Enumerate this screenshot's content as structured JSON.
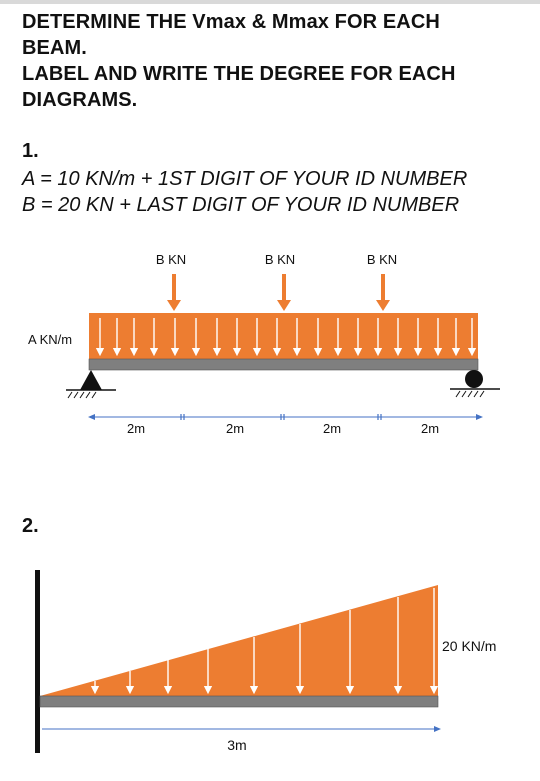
{
  "instructions": {
    "line1": "DETERMINE THE Vmax & Mmax FOR EACH",
    "line2": "BEAM.",
    "line3": "LABEL AND WRITE THE DEGREE FOR EACH",
    "line4": "DIAGRAMS."
  },
  "problem1": {
    "number": "1.",
    "given_a": "A = 10 KN/m + 1ST DIGIT OF YOUR ID NUMBER",
    "given_b": "B = 20 KN + LAST DIGIT OF YOUR ID NUMBER",
    "point_loads": [
      "B KN",
      "B KN",
      "B KN"
    ],
    "distributed_label": "A KN/m",
    "spans": [
      "2m",
      "2m",
      "2m",
      "2m"
    ]
  },
  "problem2": {
    "number": "2.",
    "load_label": "20 KN/m",
    "span": "3m"
  },
  "colors": {
    "load_fill": "#ED7D31",
    "beam": "#7F7F7F",
    "dimension": "#4472C4"
  }
}
